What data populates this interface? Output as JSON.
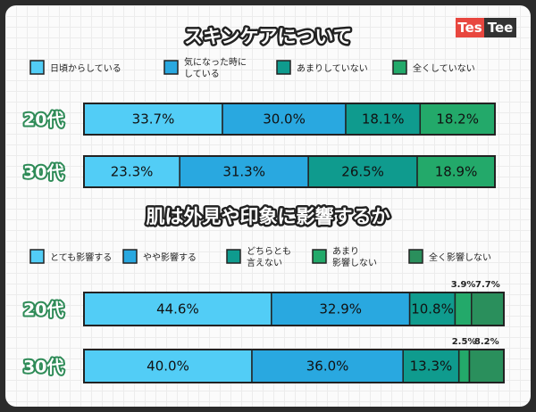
{
  "logo": {
    "part1": "Tes",
    "part2": "Tee",
    "color1": "#e8473f",
    "color2": "#333333"
  },
  "colors": [
    "#52cdf6",
    "#29a8e0",
    "#0f9b8e",
    "#23a96a",
    "#2a8f5c"
  ],
  "chart_data": [
    {
      "type": "bar",
      "orientation": "horizontal-stacked-100",
      "title": "スキンケアについて",
      "legend": [
        [
          "日頃からしている"
        ],
        [
          "気になった時に",
          "している"
        ],
        [
          "あまりしていない"
        ],
        [
          "全くしていない"
        ]
      ],
      "categories": [
        "20代",
        "30代"
      ],
      "series": [
        {
          "name": "日頃からしている",
          "values": [
            33.7,
            23.3
          ]
        },
        {
          "name": "気になった時にしている",
          "values": [
            30.0,
            31.3
          ]
        },
        {
          "name": "あまりしていない",
          "values": [
            18.1,
            26.5
          ]
        },
        {
          "name": "全くしていない",
          "values": [
            18.2,
            18.9
          ]
        }
      ],
      "labels": [
        [
          "33.7%",
          "30.0%",
          "18.1%",
          "18.2%"
        ],
        [
          "23.3%",
          "31.3%",
          "26.5%",
          "18.9%"
        ]
      ],
      "outside_labels": [
        [],
        []
      ]
    },
    {
      "type": "bar",
      "orientation": "horizontal-stacked-100",
      "title": "肌は外見や印象に影響するか",
      "legend": [
        [
          "とても影響する"
        ],
        [
          "やや影響する"
        ],
        [
          "どちらとも",
          "言えない"
        ],
        [
          "あまり",
          "影響しない"
        ],
        [
          "全く影響しない"
        ]
      ],
      "categories": [
        "20代",
        "30代"
      ],
      "series": [
        {
          "name": "とても影響する",
          "values": [
            44.6,
            40.0
          ]
        },
        {
          "name": "やや影響する",
          "values": [
            32.9,
            36.0
          ]
        },
        {
          "name": "どちらとも言えない",
          "values": [
            10.8,
            13.3
          ]
        },
        {
          "name": "あまり影響しない",
          "values": [
            3.9,
            2.5
          ]
        },
        {
          "name": "全く影響しない",
          "values": [
            7.7,
            8.2
          ]
        }
      ],
      "labels": [
        [
          "44.6%",
          "32.9%",
          "10.8%",
          "",
          ""
        ],
        [
          "40.0%",
          "36.0%",
          "13.3%",
          "",
          ""
        ]
      ],
      "outside_labels": [
        [
          "3.9%",
          "7.7%"
        ],
        [
          "2.5%",
          "8.2%"
        ]
      ]
    }
  ]
}
